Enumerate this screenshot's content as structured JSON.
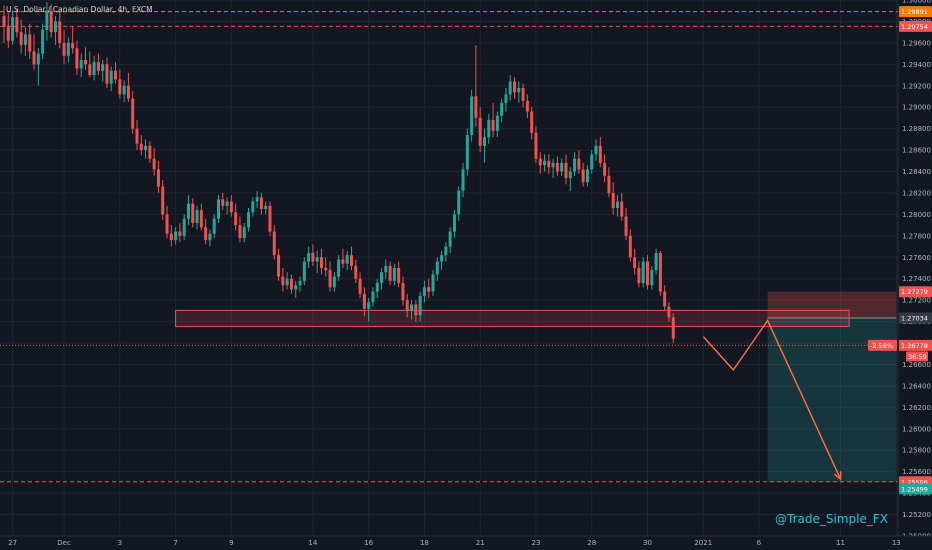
{
  "header": {
    "title": "U.S. Dollar / Canadian Dollar, 4h, FXCM",
    "currency": "CAD"
  },
  "watermark": "@Trade_Simple_FX",
  "colors": {
    "background": "#131722",
    "grid": "#1f2433",
    "up": "#26a69a",
    "down": "#ef5350",
    "level": "#ef5350",
    "zone_fill": "rgba(239,83,80,0.18)",
    "stop_fill": "rgba(239,83,80,0.28)",
    "target_fill": "rgba(38,166,154,0.22)",
    "path": "#ef5350",
    "arrow": "#ff7043",
    "axis_text": "#b2b5be",
    "orange_tag": "#f57c00"
  },
  "chart_data": {
    "type": "candlestick",
    "title": "U.S. Dollar / Canadian Dollar, 4h, FXCM",
    "ylim": [
      1.25,
      1.3
    ],
    "grid": true,
    "x_ticks": [
      {
        "label": "27",
        "bar": 2
      },
      {
        "label": "Dec",
        "bar": 14
      },
      {
        "label": "3",
        "bar": 27
      },
      {
        "label": "7",
        "bar": 40
      },
      {
        "label": "9",
        "bar": 53
      },
      {
        "label": "14",
        "bar": 72
      },
      {
        "label": "16",
        "bar": 85
      },
      {
        "label": "18",
        "bar": 98
      },
      {
        "label": "21",
        "bar": 111
      },
      {
        "label": "23",
        "bar": 124
      },
      {
        "label": "28",
        "bar": 137
      },
      {
        "label": "30",
        "bar": 150
      },
      {
        "label": "2021",
        "bar": 163
      },
      {
        "label": "6",
        "bar": 176
      },
      {
        "label": "11",
        "bar": 195
      },
      {
        "label": "13",
        "bar": 208
      }
    ],
    "y_ticks": [
      1.25,
      1.252,
      1.254,
      1.256,
      1.258,
      1.26,
      1.262,
      1.264,
      1.266,
      1.268,
      1.27,
      1.272,
      1.274,
      1.276,
      1.278,
      1.28,
      1.282,
      1.284,
      1.286,
      1.288,
      1.29,
      1.292,
      1.294,
      1.296,
      1.298,
      1.3
    ],
    "candles_ohlc": [
      [
        1.2985,
        1.2995,
        1.296,
        1.2975
      ],
      [
        1.2975,
        1.2988,
        1.2955,
        1.2962
      ],
      [
        1.2962,
        1.299,
        1.2958,
        1.2984
      ],
      [
        1.2984,
        1.2992,
        1.2965,
        1.297
      ],
      [
        1.297,
        1.2982,
        1.295,
        1.2958
      ],
      [
        1.2958,
        1.2975,
        1.2948,
        1.2968
      ],
      [
        1.2968,
        1.2978,
        1.2945,
        1.2952
      ],
      [
        1.2952,
        1.2968,
        1.2935,
        1.294
      ],
      [
        1.294,
        1.2955,
        1.292,
        1.295
      ],
      [
        1.295,
        1.2978,
        1.2945,
        1.2972
      ],
      [
        1.2972,
        1.2998,
        1.2962,
        1.299
      ],
      [
        1.299,
        1.2996,
        1.2965,
        1.297
      ],
      [
        1.297,
        1.2985,
        1.2958,
        1.298
      ],
      [
        1.298,
        1.299,
        1.2955,
        1.296
      ],
      [
        1.296,
        1.2972,
        1.294,
        1.2948
      ],
      [
        1.2948,
        1.2965,
        1.2942,
        1.296
      ],
      [
        1.296,
        1.2975,
        1.295,
        1.2955
      ],
      [
        1.2955,
        1.2962,
        1.293,
        1.2936
      ],
      [
        1.2936,
        1.295,
        1.2928,
        1.2944
      ],
      [
        1.2944,
        1.2956,
        1.2935,
        1.294
      ],
      [
        1.294,
        1.2952,
        1.2928,
        1.293
      ],
      [
        1.293,
        1.2948,
        1.2925,
        1.2942
      ],
      [
        1.2942,
        1.295,
        1.293,
        1.2934
      ],
      [
        1.2934,
        1.2944,
        1.2924,
        1.294
      ],
      [
        1.294,
        1.2946,
        1.2918,
        1.2922
      ],
      [
        1.2922,
        1.2938,
        1.2915,
        1.2934
      ],
      [
        1.2934,
        1.2942,
        1.2922,
        1.2926
      ],
      [
        1.2926,
        1.2935,
        1.2908,
        1.2912
      ],
      [
        1.2912,
        1.2925,
        1.2905,
        1.292
      ],
      [
        1.292,
        1.2932,
        1.2905,
        1.2908
      ],
      [
        1.2908,
        1.2915,
        1.2875,
        1.288
      ],
      [
        1.288,
        1.2888,
        1.286,
        1.2866
      ],
      [
        1.2866,
        1.2874,
        1.2855,
        1.286
      ],
      [
        1.286,
        1.287,
        1.2852,
        1.2864
      ],
      [
        1.2864,
        1.2868,
        1.2848,
        1.2852
      ],
      [
        1.2852,
        1.2862,
        1.2836,
        1.2842
      ],
      [
        1.2842,
        1.285,
        1.282,
        1.2826
      ],
      [
        1.2826,
        1.2832,
        1.2795,
        1.28
      ],
      [
        1.28,
        1.2808,
        1.2778,
        1.2782
      ],
      [
        1.2782,
        1.279,
        1.277,
        1.2776
      ],
      [
        1.2776,
        1.2788,
        1.2772,
        1.2784
      ],
      [
        1.2784,
        1.2792,
        1.2774,
        1.278
      ],
      [
        1.278,
        1.28,
        1.2776,
        1.2796
      ],
      [
        1.2796,
        1.2818,
        1.279,
        1.281
      ],
      [
        1.281,
        1.2815,
        1.2788,
        1.2792
      ],
      [
        1.2792,
        1.2808,
        1.2786,
        1.2804
      ],
      [
        1.2804,
        1.281,
        1.2785,
        1.2788
      ],
      [
        1.2788,
        1.2796,
        1.2772,
        1.2776
      ],
      [
        1.2776,
        1.2786,
        1.277,
        1.2782
      ],
      [
        1.2782,
        1.28,
        1.2778,
        1.2796
      ],
      [
        1.2796,
        1.2818,
        1.2792,
        1.2814
      ],
      [
        1.2814,
        1.282,
        1.2804,
        1.2808
      ],
      [
        1.2808,
        1.2816,
        1.28,
        1.2812
      ],
      [
        1.2812,
        1.2818,
        1.2798,
        1.2802
      ],
      [
        1.2802,
        1.281,
        1.2785,
        1.279
      ],
      [
        1.279,
        1.2798,
        1.2774,
        1.2778
      ],
      [
        1.2778,
        1.2792,
        1.2774,
        1.2788
      ],
      [
        1.2788,
        1.2806,
        1.2784,
        1.2802
      ],
      [
        1.2802,
        1.2816,
        1.2798,
        1.2812
      ],
      [
        1.2812,
        1.2822,
        1.2806,
        1.2816
      ],
      [
        1.2816,
        1.282,
        1.28,
        1.2805
      ],
      [
        1.2805,
        1.2812,
        1.28,
        1.2808
      ],
      [
        1.2808,
        1.2812,
        1.278,
        1.2784
      ],
      [
        1.2784,
        1.279,
        1.2758,
        1.2762
      ],
      [
        1.2762,
        1.2768,
        1.2738,
        1.2742
      ],
      [
        1.2742,
        1.275,
        1.2728,
        1.2734
      ],
      [
        1.2734,
        1.2746,
        1.273,
        1.274
      ],
      [
        1.274,
        1.2744,
        1.2726,
        1.273
      ],
      [
        1.273,
        1.2738,
        1.2722,
        1.2734
      ],
      [
        1.2734,
        1.2742,
        1.2728,
        1.2738
      ],
      [
        1.2738,
        1.276,
        1.2734,
        1.2756
      ],
      [
        1.2756,
        1.277,
        1.275,
        1.2764
      ],
      [
        1.2764,
        1.2772,
        1.2752,
        1.2756
      ],
      [
        1.2756,
        1.2766,
        1.2745,
        1.276
      ],
      [
        1.276,
        1.2768,
        1.2744,
        1.275
      ],
      [
        1.275,
        1.276,
        1.2742,
        1.2748
      ],
      [
        1.2748,
        1.2756,
        1.2728,
        1.2732
      ],
      [
        1.2732,
        1.2746,
        1.2728,
        1.2742
      ],
      [
        1.2742,
        1.2762,
        1.2738,
        1.2758
      ],
      [
        1.2758,
        1.2768,
        1.275,
        1.2754
      ],
      [
        1.2754,
        1.2766,
        1.2748,
        1.2762
      ],
      [
        1.2762,
        1.277,
        1.2748,
        1.2752
      ],
      [
        1.2752,
        1.2758,
        1.2736,
        1.274
      ],
      [
        1.274,
        1.2746,
        1.2722,
        1.2726
      ],
      [
        1.2726,
        1.2732,
        1.2705,
        1.2712
      ],
      [
        1.2712,
        1.2722,
        1.27,
        1.2718
      ],
      [
        1.2718,
        1.2732,
        1.2714,
        1.2728
      ],
      [
        1.2728,
        1.274,
        1.2722,
        1.2736
      ],
      [
        1.2736,
        1.275,
        1.273,
        1.2746
      ],
      [
        1.2746,
        1.2758,
        1.274,
        1.2752
      ],
      [
        1.2752,
        1.2756,
        1.2734,
        1.2738
      ],
      [
        1.2738,
        1.2754,
        1.2734,
        1.275
      ],
      [
        1.275,
        1.2756,
        1.2732,
        1.2736
      ],
      [
        1.2736,
        1.2742,
        1.2715,
        1.272
      ],
      [
        1.272,
        1.2726,
        1.2704,
        1.271
      ],
      [
        1.271,
        1.272,
        1.2702,
        1.2716
      ],
      [
        1.2716,
        1.272,
        1.27,
        1.2706
      ],
      [
        1.2706,
        1.2728,
        1.27,
        1.2724
      ],
      [
        1.2724,
        1.2738,
        1.2718,
        1.2732
      ],
      [
        1.2732,
        1.274,
        1.2722,
        1.2728
      ],
      [
        1.2728,
        1.2748,
        1.2724,
        1.2744
      ],
      [
        1.2744,
        1.276,
        1.2738,
        1.2756
      ],
      [
        1.2756,
        1.2766,
        1.2748,
        1.2762
      ],
      [
        1.2762,
        1.2774,
        1.2756,
        1.277
      ],
      [
        1.277,
        1.2788,
        1.2764,
        1.2784
      ],
      [
        1.2784,
        1.2804,
        1.2778,
        1.28
      ],
      [
        1.28,
        1.2826,
        1.2794,
        1.2822
      ],
      [
        1.2822,
        1.2848,
        1.2816,
        1.2842
      ],
      [
        1.2842,
        1.288,
        1.2836,
        1.2874
      ],
      [
        1.2874,
        1.2916,
        1.2868,
        1.291
      ],
      [
        1.291,
        1.2958,
        1.2882,
        1.289
      ],
      [
        1.289,
        1.29,
        1.2858,
        1.2864
      ],
      [
        1.2864,
        1.288,
        1.2848,
        1.2872
      ],
      [
        1.2872,
        1.2894,
        1.2866,
        1.2888
      ],
      [
        1.2888,
        1.2904,
        1.2872,
        1.2878
      ],
      [
        1.2878,
        1.2896,
        1.2872,
        1.2892
      ],
      [
        1.2892,
        1.2908,
        1.2886,
        1.2904
      ],
      [
        1.2904,
        1.2918,
        1.2896,
        1.2912
      ],
      [
        1.2912,
        1.293,
        1.2906,
        1.2924
      ],
      [
        1.2924,
        1.2928,
        1.2908,
        1.2914
      ],
      [
        1.2914,
        1.2924,
        1.2904,
        1.2918
      ],
      [
        1.2918,
        1.2922,
        1.29,
        1.2906
      ],
      [
        1.2906,
        1.2912,
        1.289,
        1.2896
      ],
      [
        1.2896,
        1.29,
        1.287,
        1.2876
      ],
      [
        1.2876,
        1.2882,
        1.2848,
        1.2852
      ],
      [
        1.2852,
        1.2858,
        1.2838,
        1.2846
      ],
      [
        1.2846,
        1.2856,
        1.284,
        1.285
      ],
      [
        1.285,
        1.2856,
        1.2838,
        1.2844
      ],
      [
        1.2844,
        1.2852,
        1.2834,
        1.2848
      ],
      [
        1.2848,
        1.2854,
        1.2836,
        1.284
      ],
      [
        1.284,
        1.2852,
        1.2836,
        1.2848
      ],
      [
        1.2848,
        1.2856,
        1.2828,
        1.2834
      ],
      [
        1.2834,
        1.2844,
        1.2822,
        1.284
      ],
      [
        1.284,
        1.2858,
        1.2836,
        1.2852
      ],
      [
        1.2852,
        1.286,
        1.2838,
        1.2842
      ],
      [
        1.2842,
        1.2848,
        1.2826,
        1.283
      ],
      [
        1.283,
        1.2846,
        1.2826,
        1.2842
      ],
      [
        1.2842,
        1.286,
        1.2838,
        1.2856
      ],
      [
        1.2856,
        1.287,
        1.285,
        1.2864
      ],
      [
        1.2864,
        1.2872,
        1.2844,
        1.2848
      ],
      [
        1.2848,
        1.2856,
        1.283,
        1.2836
      ],
      [
        1.2836,
        1.2844,
        1.2816,
        1.282
      ],
      [
        1.282,
        1.283,
        1.28,
        1.2806
      ],
      [
        1.2806,
        1.2818,
        1.2798,
        1.2812
      ],
      [
        1.2812,
        1.282,
        1.2794,
        1.2798
      ],
      [
        1.2798,
        1.2806,
        1.2776,
        1.278
      ],
      [
        1.278,
        1.2786,
        1.2756,
        1.276
      ],
      [
        1.276,
        1.2768,
        1.2744,
        1.275
      ],
      [
        1.275,
        1.2756,
        1.2732,
        1.2736
      ],
      [
        1.2736,
        1.276,
        1.2732,
        1.2756
      ],
      [
        1.2756,
        1.2762,
        1.273,
        1.2734
      ],
      [
        1.2734,
        1.2752,
        1.273,
        1.2748
      ],
      [
        1.2748,
        1.2768,
        1.2744,
        1.2764
      ],
      [
        1.2764,
        1.2766,
        1.2724,
        1.2728
      ],
      [
        1.2728,
        1.2734,
        1.271,
        1.2714
      ],
      [
        1.2714,
        1.2718,
        1.27,
        1.2704
      ],
      [
        1.2704,
        1.2708,
        1.268,
        1.2684
      ]
    ],
    "support_zone": {
      "from_bar": 40,
      "to_bar": 197,
      "top": 1.27105,
      "bottom": 1.26955
    },
    "projected_path": [
      {
        "bar": 163,
        "price": 1.2686
      },
      {
        "bar": 170,
        "price": 1.2655
      },
      {
        "bar": 178,
        "price": 1.2701
      },
      {
        "bar": 195,
        "price": 1.2553
      }
    ],
    "position": {
      "from_bar": 178,
      "to_bar": 208,
      "entry": 1.27034,
      "stop": 1.27279,
      "target": 1.25506
    },
    "levels": [
      {
        "price": 1.29891,
        "color": "#f57c00",
        "style": "dashed"
      },
      {
        "price": 1.29754,
        "color": "#ef5350",
        "style": "dashed"
      },
      {
        "price": 1.26778,
        "color": "#ef5350",
        "style": "dotted"
      },
      {
        "price": 1.25506,
        "color": "#ef5350",
        "style": "dashed"
      }
    ],
    "price_tags": [
      {
        "text": "1.29891",
        "price": 1.29891,
        "color": "#f57c00"
      },
      {
        "text": "1.29754",
        "price": 1.29754,
        "color": "#ef5350"
      },
      {
        "text": "1.27279",
        "price": 1.27279,
        "color": "#ef5350"
      },
      {
        "text": "1.27034",
        "price": 1.27034,
        "color": "#363a45"
      },
      {
        "text": "1.26778",
        "price": 1.26778,
        "color": "#ef5350"
      },
      {
        "text": "1.25506",
        "price": 1.25506,
        "color": "#ef5350"
      },
      {
        "text": "1.25499",
        "price": 1.2544,
        "color": "#26a69a"
      }
    ],
    "current_change": "-2.58%",
    "countdown": "36:59"
  }
}
